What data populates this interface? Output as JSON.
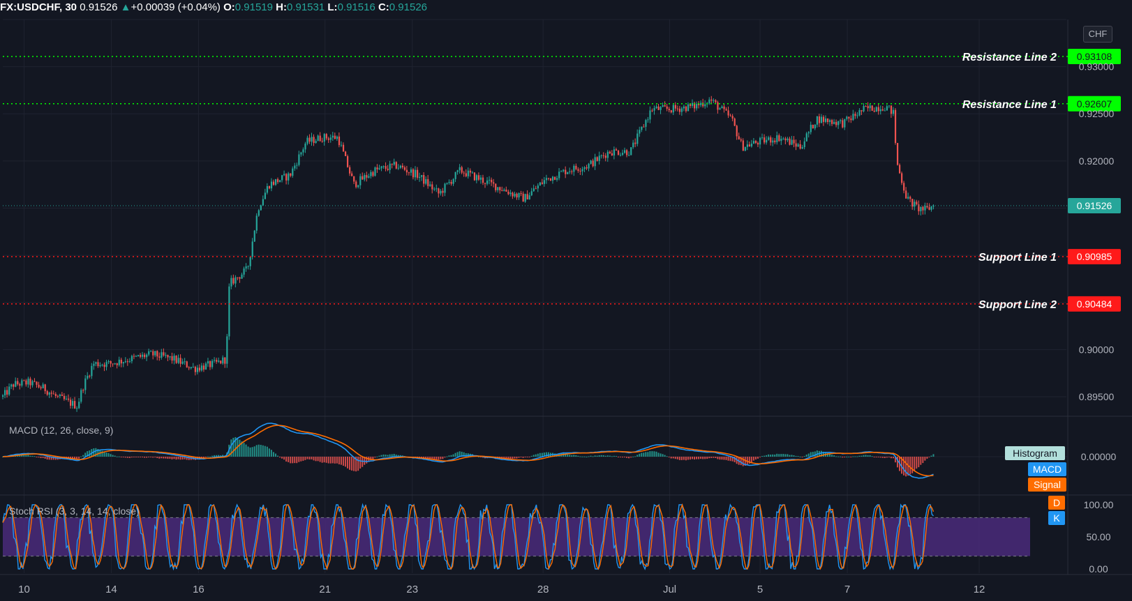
{
  "header": {
    "symbol": "FX:USDCHF, 30",
    "price": "0.91526",
    "change_arrow": "▲",
    "change": "+0.00039 (+0.04%)",
    "open_label": "O:",
    "open": "0.91519",
    "high_label": "H:",
    "high": "0.91531",
    "low_label": "L:",
    "low": "0.91516",
    "close_label": "C:",
    "close": "0.91526"
  },
  "currency_button": "CHF",
  "colors": {
    "background": "#131722",
    "up": "#26a69a",
    "down": "#ef5350",
    "resistance": "#00ff00",
    "support": "#ff1a1a",
    "macd": "#2196f3",
    "signal": "#ff6d00",
    "stoch_k": "#2196f3",
    "stoch_d": "#ff6d00",
    "stoch_band": "#4a2a7a"
  },
  "chart_data": [
    {
      "type": "candlestick",
      "name": "price",
      "ylim": [
        0.893,
        0.935
      ],
      "y_ticks": [
        "0.93000",
        "0.92500",
        "0.92000",
        "0.90000",
        "0.89500"
      ],
      "y_tick_values": [
        0.93,
        0.925,
        0.92,
        0.9,
        0.895
      ],
      "x_ticks": [
        "10",
        "14",
        "16",
        "21",
        "23",
        "28",
        "Jul",
        "5",
        "7",
        "12"
      ],
      "x_tick_values": [
        0.02,
        0.102,
        0.184,
        0.303,
        0.385,
        0.508,
        0.627,
        0.712,
        0.794,
        0.918
      ],
      "current_price": 0.91526,
      "current_price_label": "0.91526",
      "anchors": [
        [
          0.0,
          0.895
        ],
        [
          0.01,
          0.8963
        ],
        [
          0.025,
          0.8965
        ],
        [
          0.04,
          0.8958
        ],
        [
          0.05,
          0.895
        ],
        [
          0.06,
          0.8945
        ],
        [
          0.07,
          0.894
        ],
        [
          0.075,
          0.896
        ],
        [
          0.085,
          0.8985
        ],
        [
          0.1,
          0.8985
        ],
        [
          0.12,
          0.899
        ],
        [
          0.14,
          0.8995
        ],
        [
          0.16,
          0.899
        ],
        [
          0.18,
          0.898
        ],
        [
          0.2,
          0.8985
        ],
        [
          0.21,
          0.899
        ],
        [
          0.213,
          0.907
        ],
        [
          0.23,
          0.9085
        ],
        [
          0.24,
          0.915
        ],
        [
          0.25,
          0.9175
        ],
        [
          0.27,
          0.9185
        ],
        [
          0.285,
          0.922
        ],
        [
          0.3,
          0.9225
        ],
        [
          0.315,
          0.9225
        ],
        [
          0.33,
          0.9175
        ],
        [
          0.35,
          0.919
        ],
        [
          0.37,
          0.9195
        ],
        [
          0.39,
          0.9185
        ],
        [
          0.41,
          0.9165
        ],
        [
          0.43,
          0.919
        ],
        [
          0.45,
          0.918
        ],
        [
          0.47,
          0.917
        ],
        [
          0.49,
          0.916
        ],
        [
          0.51,
          0.918
        ],
        [
          0.53,
          0.919
        ],
        [
          0.55,
          0.9195
        ],
        [
          0.57,
          0.921
        ],
        [
          0.59,
          0.921
        ],
        [
          0.61,
          0.9255
        ],
        [
          0.63,
          0.9255
        ],
        [
          0.65,
          0.9258
        ],
        [
          0.665,
          0.9265
        ],
        [
          0.685,
          0.9245
        ],
        [
          0.695,
          0.9215
        ],
        [
          0.71,
          0.922
        ],
        [
          0.73,
          0.9225
        ],
        [
          0.75,
          0.9215
        ],
        [
          0.765,
          0.9245
        ],
        [
          0.79,
          0.924
        ],
        [
          0.81,
          0.9255
        ],
        [
          0.83,
          0.9258
        ],
        [
          0.838,
          0.925
        ],
        [
          0.84,
          0.92
        ],
        [
          0.85,
          0.916
        ],
        [
          0.86,
          0.915
        ],
        [
          0.868,
          0.9148
        ],
        [
          0.875,
          0.91526
        ]
      ],
      "horizontal_lines": [
        {
          "label": "Resistance Line 2",
          "value": 0.93108,
          "value_label": "0.93108",
          "kind": "resistance"
        },
        {
          "label": "Resistance Line 1",
          "value": 0.92607,
          "value_label": "0.92607",
          "kind": "resistance"
        },
        {
          "label": "Support Line 1",
          "value": 0.90985,
          "value_label": "0.90985",
          "kind": "support"
        },
        {
          "label": "Support Line 2",
          "value": 0.90484,
          "value_label": "0.90484",
          "kind": "support"
        }
      ]
    },
    {
      "type": "line",
      "name": "MACD (12, 26, close, 9)",
      "title": "MACD (12, 26, close, 9)",
      "y_ticks": [
        "0.00000"
      ],
      "y_tick_values": [
        0
      ],
      "legend": [
        {
          "label": "Histogram",
          "color": "#b2dfdb",
          "text_color": "#131722"
        },
        {
          "label": "MACD",
          "color": "#2196f3",
          "text_color": "#ffffff"
        },
        {
          "label": "Signal",
          "color": "#ff6d00",
          "text_color": "#ffffff"
        }
      ],
      "ylim": [
        -1.0,
        1.0
      ]
    },
    {
      "type": "line",
      "name": "Stoch RSI (3, 3, 14, 14, close)",
      "title": "Stoch RSI (3, 3, 14, 14, close)",
      "ylim": [
        0,
        100
      ],
      "bands": [
        20,
        80
      ],
      "y_ticks": [
        "100.00",
        "50.00",
        "0.00"
      ],
      "y_tick_values": [
        100,
        50,
        0
      ],
      "legend": [
        {
          "label": "D",
          "color": "#ff6d00"
        },
        {
          "label": "K",
          "color": "#2196f3"
        }
      ]
    }
  ]
}
